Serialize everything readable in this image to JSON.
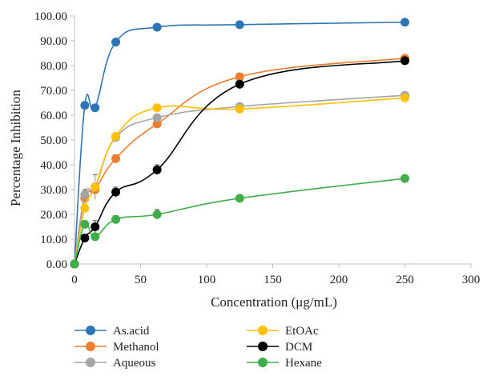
{
  "chart_data": {
    "type": "line",
    "title": "",
    "xlabel": "Concentration (μg/mL)",
    "ylabel": "Percentage Inhibition",
    "xlim": [
      0,
      300
    ],
    "ylim": [
      0,
      100
    ],
    "x_ticks": [
      "0",
      "50",
      "100",
      "150",
      "200",
      "250",
      "300"
    ],
    "y_ticks": [
      "0.00",
      "10.00",
      "20.00",
      "30.00",
      "40.00",
      "50.00",
      "60.00",
      "70.00",
      "80.00",
      "90.00",
      "100.00"
    ],
    "grid": false,
    "legend_position": "bottom",
    "x": [
      0,
      7.8,
      15.6,
      31.25,
      62.5,
      125,
      250
    ],
    "series": [
      {
        "name": "As.acid",
        "color": "#2E75B6",
        "values": [
          0,
          64,
          63,
          89.5,
          95.5,
          96.5,
          97.5
        ],
        "errors": [
          0,
          0,
          0,
          0,
          0,
          0,
          0
        ]
      },
      {
        "name": "Methanol",
        "color": "#ED7D31",
        "values": [
          0,
          26.5,
          30,
          42.5,
          56.5,
          75.5,
          83
        ],
        "errors": [
          0,
          1,
          1,
          1.5,
          1.5,
          1,
          1
        ]
      },
      {
        "name": "Aqueous",
        "color": "#A5A5A5",
        "values": [
          0,
          28,
          31,
          51,
          59,
          63.5,
          68
        ],
        "errors": [
          0,
          2,
          5,
          1.5,
          1,
          1,
          1
        ]
      },
      {
        "name": "EtOAc",
        "color": "#FFC000",
        "values": [
          0,
          22.5,
          31,
          51.5,
          63,
          62.5,
          67
        ],
        "errors": [
          0,
          1,
          1.5,
          1,
          1,
          1,
          1
        ]
      },
      {
        "name": "DCM",
        "color": "#000000",
        "values": [
          0,
          10.5,
          15,
          29,
          38,
          72.5,
          82
        ],
        "errors": [
          0,
          1.5,
          2.5,
          2,
          2,
          1,
          1
        ]
      },
      {
        "name": "Hexane",
        "color": "#3FAE49",
        "values": [
          0,
          16,
          11,
          18,
          20,
          26.5,
          34.5
        ],
        "errors": [
          0,
          1,
          1,
          1.5,
          2,
          1,
          1
        ]
      }
    ]
  }
}
